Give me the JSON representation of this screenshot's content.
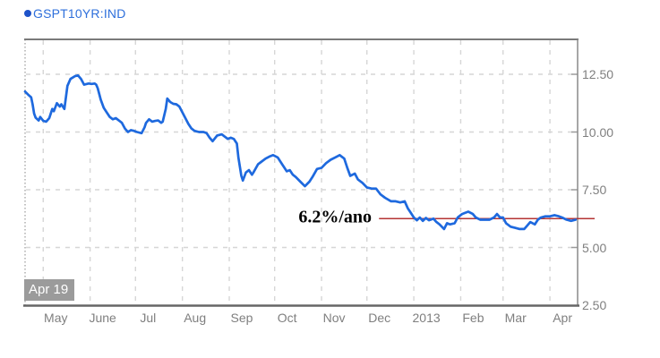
{
  "legend": {
    "symbol": "GSPT10YR:IND"
  },
  "colors": {
    "series_line": "#1e69de",
    "legend_text": "#2e6fdb",
    "legend_dot": "#1d52c9",
    "annotation_line": "#b43434",
    "axis_border": "#888888",
    "axis_bottom": "#666666",
    "gridline": "#d6d6d6",
    "tick_label": "#7f7f7f",
    "badge_bg": "#9b9b9b",
    "badge_text": "#ffffff",
    "annotation_text": "#000000"
  },
  "chart_data": {
    "type": "line",
    "title": "",
    "xlabel": "",
    "ylabel": "",
    "grid": true,
    "legend_position": "top-left",
    "series": [
      {
        "name": "GSPT10YR:IND",
        "x_unit": "days since 2012-04-19",
        "points": [
          [
            0,
            11.75
          ],
          [
            2,
            11.62
          ],
          [
            4,
            11.5
          ],
          [
            5,
            11.2
          ],
          [
            6,
            10.8
          ],
          [
            7,
            10.62
          ],
          [
            9,
            10.5
          ],
          [
            10,
            10.65
          ],
          [
            12,
            10.48
          ],
          [
            14,
            10.45
          ],
          [
            16,
            10.6
          ],
          [
            18,
            11.0
          ],
          [
            19,
            10.9
          ],
          [
            21,
            11.25
          ],
          [
            23,
            11.1
          ],
          [
            24,
            11.2
          ],
          [
            26,
            11.0
          ],
          [
            27,
            11.5
          ],
          [
            28,
            12.0
          ],
          [
            30,
            12.3
          ],
          [
            33,
            12.42
          ],
          [
            35,
            12.45
          ],
          [
            37,
            12.3
          ],
          [
            39,
            12.05
          ],
          [
            42,
            12.1
          ],
          [
            44,
            12.08
          ],
          [
            46,
            12.1
          ],
          [
            47,
            12.05
          ],
          [
            48,
            11.9
          ],
          [
            50,
            11.4
          ],
          [
            52,
            11.05
          ],
          [
            54,
            10.85
          ],
          [
            56,
            10.65
          ],
          [
            58,
            10.55
          ],
          [
            60,
            10.6
          ],
          [
            62,
            10.5
          ],
          [
            64,
            10.4
          ],
          [
            66,
            10.15
          ],
          [
            68,
            10.0
          ],
          [
            70,
            10.08
          ],
          [
            72,
            10.05
          ],
          [
            74,
            10.0
          ],
          [
            77,
            9.95
          ],
          [
            79,
            10.2
          ],
          [
            80,
            10.4
          ],
          [
            82,
            10.55
          ],
          [
            84,
            10.45
          ],
          [
            86,
            10.48
          ],
          [
            88,
            10.5
          ],
          [
            90,
            10.4
          ],
          [
            91,
            10.45
          ],
          [
            93,
            11.0
          ],
          [
            94,
            11.45
          ],
          [
            96,
            11.3
          ],
          [
            98,
            11.22
          ],
          [
            100,
            11.2
          ],
          [
            102,
            11.1
          ],
          [
            104,
            10.85
          ],
          [
            106,
            10.6
          ],
          [
            108,
            10.35
          ],
          [
            110,
            10.15
          ],
          [
            112,
            10.05
          ],
          [
            115,
            10.0
          ],
          [
            118,
            10.0
          ],
          [
            120,
            9.95
          ],
          [
            122,
            9.75
          ],
          [
            124,
            9.6
          ],
          [
            127,
            9.85
          ],
          [
            130,
            9.9
          ],
          [
            132,
            9.8
          ],
          [
            134,
            9.7
          ],
          [
            136,
            9.75
          ],
          [
            138,
            9.7
          ],
          [
            140,
            9.5
          ],
          [
            141,
            8.9
          ],
          [
            143,
            8.1
          ],
          [
            144,
            7.9
          ],
          [
            146,
            8.25
          ],
          [
            148,
            8.35
          ],
          [
            150,
            8.15
          ],
          [
            151,
            8.25
          ],
          [
            154,
            8.6
          ],
          [
            156,
            8.7
          ],
          [
            159,
            8.85
          ],
          [
            162,
            8.95
          ],
          [
            164,
            9.0
          ],
          [
            167,
            8.9
          ],
          [
            170,
            8.6
          ],
          [
            173,
            8.3
          ],
          [
            175,
            8.35
          ],
          [
            177,
            8.15
          ],
          [
            179,
            8.05
          ],
          [
            182,
            7.85
          ],
          [
            185,
            7.65
          ],
          [
            188,
            7.85
          ],
          [
            190,
            8.05
          ],
          [
            193,
            8.4
          ],
          [
            196,
            8.45
          ],
          [
            199,
            8.65
          ],
          [
            202,
            8.8
          ],
          [
            205,
            8.9
          ],
          [
            208,
            9.0
          ],
          [
            211,
            8.85
          ],
          [
            213,
            8.45
          ],
          [
            215,
            8.1
          ],
          [
            218,
            8.2
          ],
          [
            220,
            7.95
          ],
          [
            223,
            7.8
          ],
          [
            226,
            7.6
          ],
          [
            229,
            7.55
          ],
          [
            232,
            7.55
          ],
          [
            235,
            7.3
          ],
          [
            238,
            7.15
          ],
          [
            242,
            7.0
          ],
          [
            245,
            7.0
          ],
          [
            248,
            6.95
          ],
          [
            251,
            7.0
          ],
          [
            253,
            6.7
          ],
          [
            255,
            6.5
          ],
          [
            257,
            6.3
          ],
          [
            259,
            6.18
          ],
          [
            261,
            6.3
          ],
          [
            263,
            6.15
          ],
          [
            265,
            6.28
          ],
          [
            267,
            6.18
          ],
          [
            270,
            6.25
          ],
          [
            272,
            6.1
          ],
          [
            274,
            6.0
          ],
          [
            277,
            5.8
          ],
          [
            279,
            6.05
          ],
          [
            281,
            6.0
          ],
          [
            284,
            6.05
          ],
          [
            286,
            6.3
          ],
          [
            289,
            6.45
          ],
          [
            291,
            6.5
          ],
          [
            293,
            6.55
          ],
          [
            296,
            6.45
          ],
          [
            298,
            6.3
          ],
          [
            301,
            6.2
          ],
          [
            304,
            6.2
          ],
          [
            307,
            6.2
          ],
          [
            310,
            6.3
          ],
          [
            312,
            6.45
          ],
          [
            314,
            6.3
          ],
          [
            316,
            6.3
          ],
          [
            318,
            6.05
          ],
          [
            321,
            5.9
          ],
          [
            324,
            5.85
          ],
          [
            327,
            5.8
          ],
          [
            330,
            5.8
          ],
          [
            332,
            5.95
          ],
          [
            334,
            6.1
          ],
          [
            337,
            6.0
          ],
          [
            339,
            6.2
          ],
          [
            341,
            6.3
          ],
          [
            344,
            6.35
          ],
          [
            347,
            6.35
          ],
          [
            350,
            6.4
          ],
          [
            353,
            6.35
          ],
          [
            355,
            6.3
          ],
          [
            358,
            6.2
          ],
          [
            361,
            6.15
          ],
          [
            364,
            6.2
          ]
        ]
      }
    ],
    "x_axis": {
      "start_label": "Apr 19",
      "range_days": [
        0,
        365
      ],
      "month_ticks": [
        {
          "label": "May",
          "t": 12
        },
        {
          "label": "June",
          "t": 43
        },
        {
          "label": "Jul",
          "t": 73
        },
        {
          "label": "Aug",
          "t": 104
        },
        {
          "label": "Sep",
          "t": 135
        },
        {
          "label": "Oct",
          "t": 165
        },
        {
          "label": "Nov",
          "t": 196
        },
        {
          "label": "Dec",
          "t": 226
        },
        {
          "label": "2013",
          "t": 257
        },
        {
          "label": "Feb",
          "t": 288
        },
        {
          "label": "Mar",
          "t": 316
        },
        {
          "label": "Apr",
          "t": 347
        }
      ]
    },
    "y_axis": {
      "side": "right",
      "range": [
        2.5,
        14.0
      ],
      "ticks": [
        {
          "label": "12.50",
          "v": 12.5
        },
        {
          "label": "10.00",
          "v": 10.0
        },
        {
          "label": "7.50",
          "v": 7.5
        },
        {
          "label": "5.00",
          "v": 5.0
        },
        {
          "label": "2.50",
          "v": 2.5
        }
      ]
    },
    "annotation": {
      "text": "6.2%/ano",
      "line_value": 6.25,
      "line_from_t": 234
    }
  }
}
